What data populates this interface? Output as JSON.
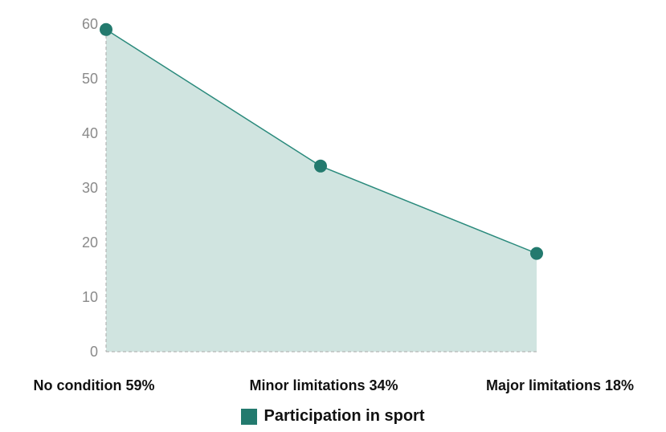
{
  "chart_data": {
    "type": "area",
    "categories": [
      "No condition 59%",
      "Minor limitations 34%",
      "Major limitations 18%"
    ],
    "series": [
      {
        "name": "Participation in sport",
        "values": [
          59,
          34,
          18
        ]
      }
    ],
    "ylim": [
      0,
      60
    ],
    "yticks": [
      0,
      10,
      20,
      30,
      40,
      50,
      60
    ],
    "grid": false,
    "legend": "bottom-center",
    "colors": {
      "line": "#2a8a7c",
      "fill": "#d0e4e0",
      "marker": "#237a6e",
      "axis": "#aaaaaa"
    }
  }
}
